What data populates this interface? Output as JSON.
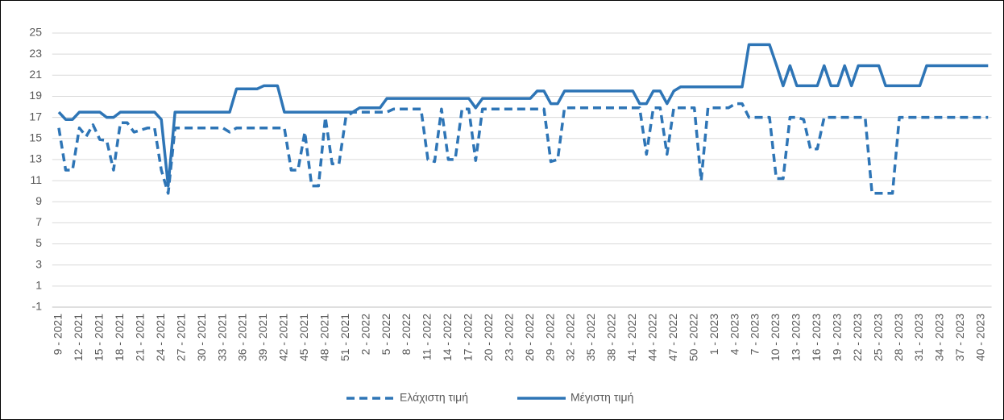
{
  "chart_data": {
    "type": "line",
    "categories": [
      "9 - 2021",
      null,
      null,
      "12 - 2021",
      null,
      null,
      "15 - 2021",
      null,
      null,
      "18 - 2021",
      null,
      null,
      "21 - 2021",
      null,
      null,
      "24 - 2021",
      null,
      null,
      "27 - 2021",
      null,
      null,
      "30 - 2021",
      null,
      null,
      "33 - 2021",
      null,
      null,
      "36 - 2021",
      null,
      null,
      "39 - 2021",
      null,
      null,
      "42 - 2021",
      null,
      null,
      "45 - 2021",
      null,
      null,
      "48 - 2021",
      null,
      null,
      "51 - 2021",
      null,
      null,
      "2 - 2022",
      null,
      null,
      "5 - 2022",
      null,
      null,
      "8 - 2022",
      null,
      null,
      "11 - 2022",
      null,
      null,
      "14 - 2022",
      null,
      null,
      "17 - 2022",
      null,
      null,
      "20 - 2022",
      null,
      null,
      "23 - 2022",
      null,
      null,
      "26 - 2022",
      null,
      null,
      "29 - 2022",
      null,
      null,
      "32 - 2022",
      null,
      null,
      "35 - 2022",
      null,
      null,
      "38 - 2022",
      null,
      null,
      "41 - 2022",
      null,
      null,
      "44 - 2022",
      null,
      null,
      "47 - 2022",
      null,
      null,
      "50 - 2022",
      null,
      null,
      "1 - 2023",
      null,
      null,
      "4 - 2023",
      null,
      null,
      "7 - 2023",
      null,
      null,
      "10 - 2023",
      null,
      null,
      "13 - 2023",
      null,
      null,
      "16 - 2023",
      null,
      null,
      "19 - 2023",
      null,
      null,
      "22 - 2023",
      null,
      null,
      "25 - 2023",
      null,
      null,
      "28 - 2023",
      null,
      null,
      "31 - 2023",
      null,
      null,
      "34 - 2023",
      null,
      null,
      "37 - 2023",
      null,
      null,
      "40 - 2023",
      null
    ],
    "series": [
      {
        "name": "Ελάχιστη τιμή",
        "color": "#2e75b6",
        "dash": true,
        "values": [
          16,
          12,
          12,
          16,
          15.2,
          16.3,
          14.9,
          14.8,
          12,
          16.5,
          16.5,
          15.6,
          15.8,
          16,
          16,
          12,
          9.8,
          16,
          16,
          16,
          16,
          16,
          16,
          16,
          16,
          15.6,
          16,
          16,
          16,
          16,
          16,
          16,
          16,
          16,
          12,
          12,
          15.6,
          10.5,
          10.5,
          17,
          12.6,
          12.6,
          17,
          17.5,
          17.5,
          17.5,
          17.5,
          17.5,
          17.5,
          17.8,
          17.8,
          17.8,
          17.8,
          17.8,
          13,
          12.8,
          17.8,
          13,
          13,
          17.8,
          17.8,
          12.9,
          17.8,
          17.8,
          17.8,
          17.8,
          17.8,
          17.8,
          17.8,
          17.8,
          17.8,
          17.8,
          12.8,
          13,
          17.9,
          17.9,
          17.9,
          17.9,
          17.9,
          17.9,
          17.9,
          17.9,
          17.9,
          17.9,
          17.9,
          17.9,
          13.5,
          17.9,
          17.9,
          13.5,
          17.9,
          17.9,
          17.9,
          17.9,
          11,
          17.9,
          17.9,
          17.9,
          17.9,
          18.3,
          18.3,
          17,
          17,
          17,
          17,
          11.2,
          11.2,
          17,
          17,
          16.8,
          14,
          14,
          17,
          17,
          17,
          17,
          17,
          17,
          17,
          9.8,
          9.8,
          9.8,
          9.8,
          17,
          17,
          17,
          17,
          17,
          17,
          17,
          17,
          17,
          17,
          17,
          17,
          17,
          17
        ]
      },
      {
        "name": "Μέγιστη τιμή",
        "color": "#2e75b6",
        "dash": false,
        "values": [
          17.5,
          16.8,
          16.8,
          17.5,
          17.5,
          17.5,
          17.5,
          17,
          17,
          17.5,
          17.5,
          17.5,
          17.5,
          17.5,
          17.5,
          16.8,
          10.5,
          17.5,
          17.5,
          17.5,
          17.5,
          17.5,
          17.5,
          17.5,
          17.5,
          17.5,
          19.7,
          19.7,
          19.7,
          19.7,
          20,
          20,
          20,
          17.5,
          17.5,
          17.5,
          17.5,
          17.5,
          17.5,
          17.5,
          17.5,
          17.5,
          17.5,
          17.5,
          17.9,
          17.9,
          17.9,
          17.9,
          18.8,
          18.8,
          18.8,
          18.8,
          18.8,
          18.8,
          18.8,
          18.8,
          18.8,
          18.8,
          18.8,
          18.8,
          18.8,
          17.9,
          18.8,
          18.8,
          18.8,
          18.8,
          18.8,
          18.8,
          18.8,
          18.8,
          19.5,
          19.5,
          18.3,
          18.3,
          19.5,
          19.5,
          19.5,
          19.5,
          19.5,
          19.5,
          19.5,
          19.5,
          19.5,
          19.5,
          19.5,
          18.3,
          18.3,
          19.5,
          19.5,
          18.3,
          19.5,
          19.9,
          19.9,
          19.9,
          19.9,
          19.9,
          19.9,
          19.9,
          19.9,
          19.9,
          19.9,
          23.9,
          23.9,
          23.9,
          23.9,
          22,
          20,
          21.9,
          20,
          20,
          20,
          20,
          21.9,
          20,
          20,
          21.9,
          20,
          21.9,
          21.9,
          21.9,
          21.9,
          20,
          20,
          20,
          20,
          20,
          20,
          21.9,
          21.9,
          21.9,
          21.9,
          21.9,
          21.9,
          21.9,
          21.9,
          21.9,
          21.9
        ]
      }
    ],
    "ylim": [
      -1,
      25
    ],
    "yticks": [
      -1,
      1,
      3,
      5,
      7,
      9,
      11,
      13,
      15,
      17,
      19,
      21,
      23,
      25
    ],
    "grid": true,
    "legend": "bottom"
  }
}
